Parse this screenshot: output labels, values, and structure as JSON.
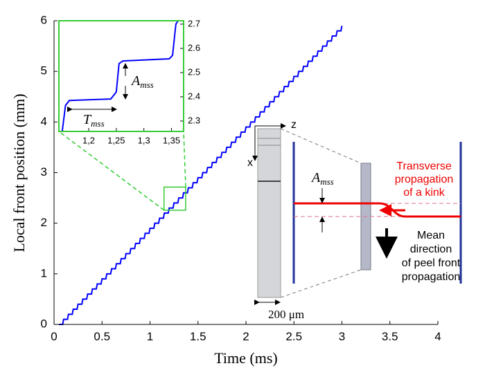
{
  "chart_data": [
    {
      "type": "line",
      "xlabel": "Time (ms)",
      "ylabel": "Local front position (mm)",
      "xlim": [
        0,
        4
      ],
      "xticks": [
        0,
        0.5,
        1,
        1.5,
        2,
        2.5,
        3,
        3.5,
        4
      ],
      "ylim": [
        0,
        6
      ],
      "yticks": [
        0,
        1,
        2,
        3,
        4,
        5,
        6
      ],
      "x": [
        0.05,
        0.09,
        0.1,
        0.14,
        0.15,
        0.19,
        0.2,
        0.24,
        0.25,
        0.29,
        0.3,
        0.34,
        0.35,
        0.39,
        0.4,
        0.44,
        0.45,
        0.49,
        0.5,
        0.54,
        0.55,
        0.59,
        0.6,
        0.64,
        0.65,
        0.69,
        0.7,
        0.74,
        0.75,
        0.79,
        0.8,
        0.84,
        0.85,
        0.89,
        0.9,
        0.94,
        0.95,
        0.99,
        1,
        1.04,
        1.05,
        1.09,
        1.1,
        1.14,
        1.15,
        1.19,
        1.2,
        1.24,
        1.25,
        1.29,
        1.3,
        1.34,
        1.35,
        1.39,
        1.4,
        1.44,
        1.45,
        1.49,
        1.5,
        1.54,
        1.55,
        1.59,
        1.6,
        1.64,
        1.65,
        1.69,
        1.7,
        1.74,
        1.75,
        1.79,
        1.8,
        1.84,
        1.85,
        1.89,
        1.9,
        1.94,
        1.95,
        1.99,
        2,
        2.04,
        2.05,
        2.09,
        2.1,
        2.14,
        2.15,
        2.19,
        2.2,
        2.24,
        2.25,
        2.29,
        2.3,
        2.34,
        2.35,
        2.39,
        2.4,
        2.44,
        2.45,
        2.49,
        2.5,
        2.54,
        2.55,
        2.59,
        2.6,
        2.64,
        2.65,
        2.69,
        2.7,
        2.74,
        2.75,
        2.79,
        2.8,
        2.84,
        2.85,
        2.89,
        2.9,
        2.94,
        2.95,
        2.99,
        3
      ],
      "series": [
        {
          "color": "#0000ff",
          "values": [
            0,
            0,
            0.1,
            0.1,
            0.2,
            0.2,
            0.3,
            0.3,
            0.4,
            0.4,
            0.5,
            0.5,
            0.6,
            0.6,
            0.7,
            0.7,
            0.8,
            0.8,
            0.9,
            0.9,
            1,
            1,
            1.1,
            1.1,
            1.2,
            1.2,
            1.3,
            1.3,
            1.4,
            1.4,
            1.5,
            1.5,
            1.6,
            1.6,
            1.7,
            1.7,
            1.8,
            1.8,
            1.9,
            1.9,
            2,
            2,
            2.1,
            2.1,
            2.2,
            2.2,
            2.3,
            2.3,
            2.4,
            2.4,
            2.5,
            2.5,
            2.6,
            2.6,
            2.7,
            2.7,
            2.8,
            2.8,
            2.9,
            2.9,
            3,
            3,
            3.1,
            3.1,
            3.2,
            3.2,
            3.3,
            3.3,
            3.4,
            3.4,
            3.5,
            3.5,
            3.6,
            3.6,
            3.7,
            3.7,
            3.8,
            3.8,
            3.9,
            3.9,
            4,
            4,
            4.1,
            4.1,
            4.2,
            4.2,
            4.3,
            4.3,
            4.4,
            4.4,
            4.5,
            4.5,
            4.6,
            4.6,
            4.7,
            4.7,
            4.8,
            4.8,
            4.9,
            4.9,
            5,
            5,
            5.1,
            5.1,
            5.2,
            5.2,
            5.3,
            5.3,
            5.4,
            5.4,
            5.5,
            5.5,
            5.6,
            5.6,
            5.7,
            5.7,
            5.8,
            5.8,
            5.9
          ]
        }
      ],
      "annotations": {
        "z": "z",
        "x": "x",
        "amplitude": {
          "text": "A",
          "sub": "mss"
        },
        "scale": "200 μm",
        "kink": [
          "Transverse",
          "propagation",
          "of a kink"
        ],
        "direction": [
          "Mean",
          "direction",
          "of peel front",
          "propagation"
        ]
      }
    },
    {
      "type": "line",
      "xlim": [
        1.146,
        1.372
      ],
      "xticks": [
        {
          "value": 1.2,
          "label": "1,2"
        },
        {
          "value": 1.25,
          "label": "1,25"
        },
        {
          "value": 1.3,
          "label": "1,3"
        },
        {
          "value": 1.35,
          "label": "1,35"
        }
      ],
      "ylim": [
        2.257,
        2.714
      ],
      "yticks": [
        2.3,
        2.4,
        2.5,
        2.6,
        2.7
      ],
      "frame_color": "#33cc33",
      "x": [
        1.152,
        1.158,
        1.165,
        1.24,
        1.25,
        1.255,
        1.262,
        1.346,
        1.352,
        1.358,
        1.362
      ],
      "series": [
        {
          "color": "#0000ff",
          "values": [
            2.257,
            2.365,
            2.385,
            2.391,
            2.42,
            2.537,
            2.548,
            2.557,
            2.571,
            2.7,
            2.714
          ]
        }
      ],
      "annotations": {
        "amplitude": {
          "text": "A",
          "sub": "mss"
        },
        "period": {
          "text": "T",
          "sub": "mss"
        }
      }
    }
  ]
}
